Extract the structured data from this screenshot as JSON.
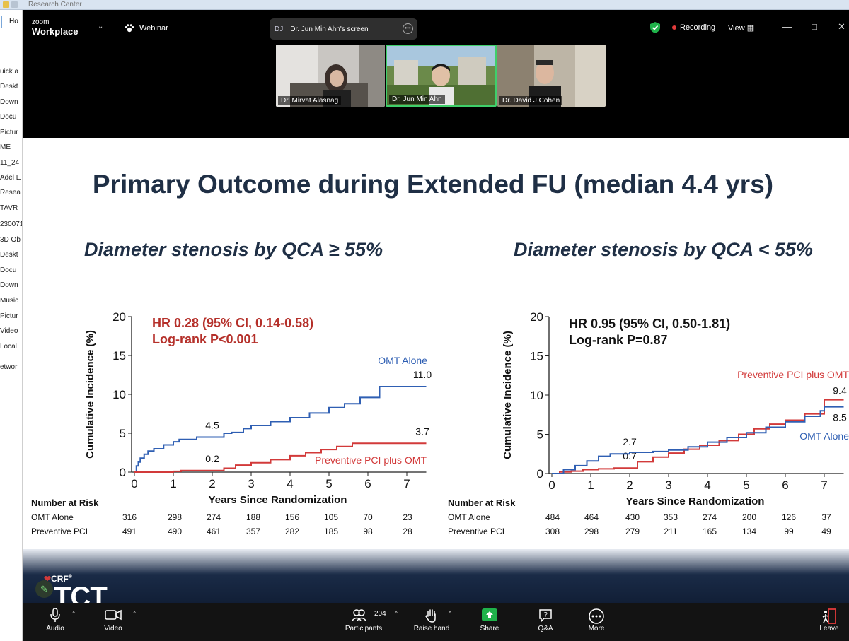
{
  "background_window": {
    "title": "Research Center",
    "address_text": "Ho",
    "nav_items": [
      "uick a",
      "Deskt",
      "Down",
      "Docu",
      "Pictur",
      "ME",
      "11_24",
      "Adel E",
      "Resea",
      "TAVR",
      "230071",
      "3D Ob",
      "Deskt",
      "Docu",
      "Down",
      "Music",
      "Pictur",
      "Video",
      "Local",
      "etwor"
    ]
  },
  "zoom": {
    "brand_small": "zoom",
    "brand_large": "Workplace",
    "webinar_label": "Webinar",
    "share_avatar": "DJ",
    "share_label": "Dr. Jun Min Ahn's screen",
    "recording_label": "Recording",
    "view_label": "View",
    "colors": {
      "recording_dot": "#e23b3b",
      "shield": "#1fb24a",
      "active_speaker_border": "#3fcf6b",
      "share_green": "#1fb24a"
    }
  },
  "videos": [
    {
      "name": "Dr. Mirvat Alasnag"
    },
    {
      "name": "Dr. Jun Min Ahn"
    },
    {
      "name": "Dr. David J.Cohen"
    }
  ],
  "slide": {
    "title": "Primary Outcome during Extended FU (median 4.4 yrs)",
    "footer_brand_small": "CRF",
    "footer_brand_large": "TCT",
    "footer_brand_small_sup": "®",
    "colors": {
      "title": "#1f2f45",
      "omt": "#2f5fb3",
      "pci": "#d23a3a",
      "hr_left": "#b5302a",
      "hr_right": "#111111"
    },
    "panels": [
      {
        "subtitle": "Diameter stenosis by QCA ≥ 55%",
        "hr_line1": "HR 0.28 (95% CI, 0.14-0.58)",
        "hr_line2": "Log-rank P<0.001",
        "number_at_risk_label": "Number at Risk",
        "risk_rows": [
          {
            "label": "OMT Alone",
            "values": [
              "316",
              "298",
              "274",
              "188",
              "156",
              "105",
              "70",
              "23"
            ]
          },
          {
            "label": "Preventive PCI",
            "values": [
              "491",
              "490",
              "461",
              "357",
              "282",
              "185",
              "98",
              "28"
            ]
          }
        ]
      },
      {
        "subtitle": "Diameter stenosis by QCA < 55%",
        "hr_line1": "HR 0.95 (95% CI, 0.50-1.81)",
        "hr_line2": "Log-rank P=0.87",
        "number_at_risk_label": "Number at Risk",
        "risk_rows": [
          {
            "label": "OMT Alone",
            "values": [
              "484",
              "464",
              "430",
              "353",
              "274",
              "200",
              "126",
              "37"
            ]
          },
          {
            "label": "Preventive PCI",
            "values": [
              "308",
              "298",
              "279",
              "211",
              "165",
              "134",
              "99",
              "49"
            ]
          }
        ]
      }
    ]
  },
  "chart_data": [
    {
      "type": "line",
      "step": true,
      "xlabel": "Years Since Randomization",
      "ylabel": "Cumulative Incidence (%)",
      "xlim": [
        0,
        7.5
      ],
      "ylim": [
        0,
        20
      ],
      "xticks": [
        "0",
        "1",
        "2",
        "3",
        "4",
        "5",
        "6",
        "7"
      ],
      "yticks": [
        "0",
        "5",
        "10",
        "15",
        "20"
      ],
      "series": [
        {
          "name": "OMT Alone",
          "color": "#2f5fb3",
          "points": [
            [
              0,
              0
            ],
            [
              0.05,
              0.8
            ],
            [
              0.1,
              1.3
            ],
            [
              0.15,
              1.8
            ],
            [
              0.25,
              2.3
            ],
            [
              0.35,
              2.7
            ],
            [
              0.5,
              3.0
            ],
            [
              0.75,
              3.5
            ],
            [
              1.0,
              3.9
            ],
            [
              1.15,
              4.2
            ],
            [
              1.6,
              4.5
            ],
            [
              2.0,
              4.5
            ],
            [
              2.3,
              5.0
            ],
            [
              2.5,
              5.1
            ],
            [
              2.8,
              5.6
            ],
            [
              3.0,
              6.0
            ],
            [
              3.5,
              6.5
            ],
            [
              4.0,
              7.0
            ],
            [
              4.5,
              7.6
            ],
            [
              5.0,
              8.3
            ],
            [
              5.4,
              8.8
            ],
            [
              5.8,
              9.6
            ],
            [
              6.3,
              11.0
            ],
            [
              7.5,
              11.0
            ]
          ],
          "annotations": [
            {
              "x": 2,
              "label": "4.5"
            },
            {
              "x": 7.4,
              "label": "11.0"
            }
          ]
        },
        {
          "name": "Preventive PCI plus OMT",
          "color": "#d23a3a",
          "points": [
            [
              0,
              0
            ],
            [
              1.0,
              0.1
            ],
            [
              1.2,
              0.2
            ],
            [
              2.0,
              0.2
            ],
            [
              2.3,
              0.5
            ],
            [
              2.6,
              0.9
            ],
            [
              3.0,
              1.2
            ],
            [
              3.5,
              1.6
            ],
            [
              4.0,
              2.1
            ],
            [
              4.4,
              2.5
            ],
            [
              4.8,
              2.9
            ],
            [
              5.2,
              3.3
            ],
            [
              5.6,
              3.7
            ],
            [
              7.5,
              3.7
            ]
          ],
          "annotations": [
            {
              "x": 2,
              "label": "0.2"
            },
            {
              "x": 7.4,
              "label": "3.7"
            }
          ]
        }
      ]
    },
    {
      "type": "line",
      "step": true,
      "xlabel": "Years Since Randomization",
      "ylabel": "Cumulative Incidence (%)",
      "xlim": [
        0,
        7.5
      ],
      "ylim": [
        0,
        20
      ],
      "xticks": [
        "0",
        "1",
        "2",
        "3",
        "4",
        "5",
        "6",
        "7"
      ],
      "yticks": [
        "0",
        "5",
        "10",
        "15",
        "20"
      ],
      "series": [
        {
          "name": "Preventive PCI plus OMT",
          "color": "#d23a3a",
          "points": [
            [
              0,
              0
            ],
            [
              0.2,
              0.2
            ],
            [
              0.5,
              0.3
            ],
            [
              0.8,
              0.5
            ],
            [
              1.2,
              0.6
            ],
            [
              1.6,
              0.7
            ],
            [
              2.0,
              0.7
            ],
            [
              2.2,
              1.5
            ],
            [
              2.6,
              2.1
            ],
            [
              3.0,
              2.6
            ],
            [
              3.4,
              3.1
            ],
            [
              3.8,
              3.6
            ],
            [
              4.3,
              4.2
            ],
            [
              4.8,
              5.0
            ],
            [
              5.2,
              5.7
            ],
            [
              5.6,
              6.3
            ],
            [
              6.0,
              6.8
            ],
            [
              6.5,
              7.6
            ],
            [
              7.0,
              9.4
            ],
            [
              7.5,
              9.4
            ]
          ],
          "annotations": [
            {
              "x": 2,
              "label": "0.7"
            },
            {
              "x": 7.4,
              "label": "9.4"
            }
          ]
        },
        {
          "name": "OMT Alone",
          "color": "#2f5fb3",
          "points": [
            [
              0,
              0
            ],
            [
              0.3,
              0.5
            ],
            [
              0.6,
              1.0
            ],
            [
              0.9,
              1.6
            ],
            [
              1.2,
              2.2
            ],
            [
              1.5,
              2.5
            ],
            [
              2.0,
              2.7
            ],
            [
              2.6,
              2.8
            ],
            [
              3.0,
              3.0
            ],
            [
              3.5,
              3.4
            ],
            [
              4.0,
              4.0
            ],
            [
              4.5,
              4.6
            ],
            [
              5.0,
              5.2
            ],
            [
              5.5,
              5.9
            ],
            [
              6.0,
              6.6
            ],
            [
              6.5,
              7.3
            ],
            [
              6.9,
              8.0
            ],
            [
              7.0,
              8.5
            ],
            [
              7.5,
              8.5
            ]
          ],
          "annotations": [
            {
              "x": 2,
              "label": "2.7"
            },
            {
              "x": 7.4,
              "label": "8.5"
            }
          ]
        }
      ]
    }
  ],
  "toolbar": {
    "audio_label": "Audio",
    "video_label": "Video",
    "participants_count": "204",
    "participants_label": "Participants",
    "raise_hand_label": "Raise hand",
    "share_label": "Share",
    "qa_label": "Q&A",
    "more_label": "More",
    "leave_label": "Leave"
  }
}
